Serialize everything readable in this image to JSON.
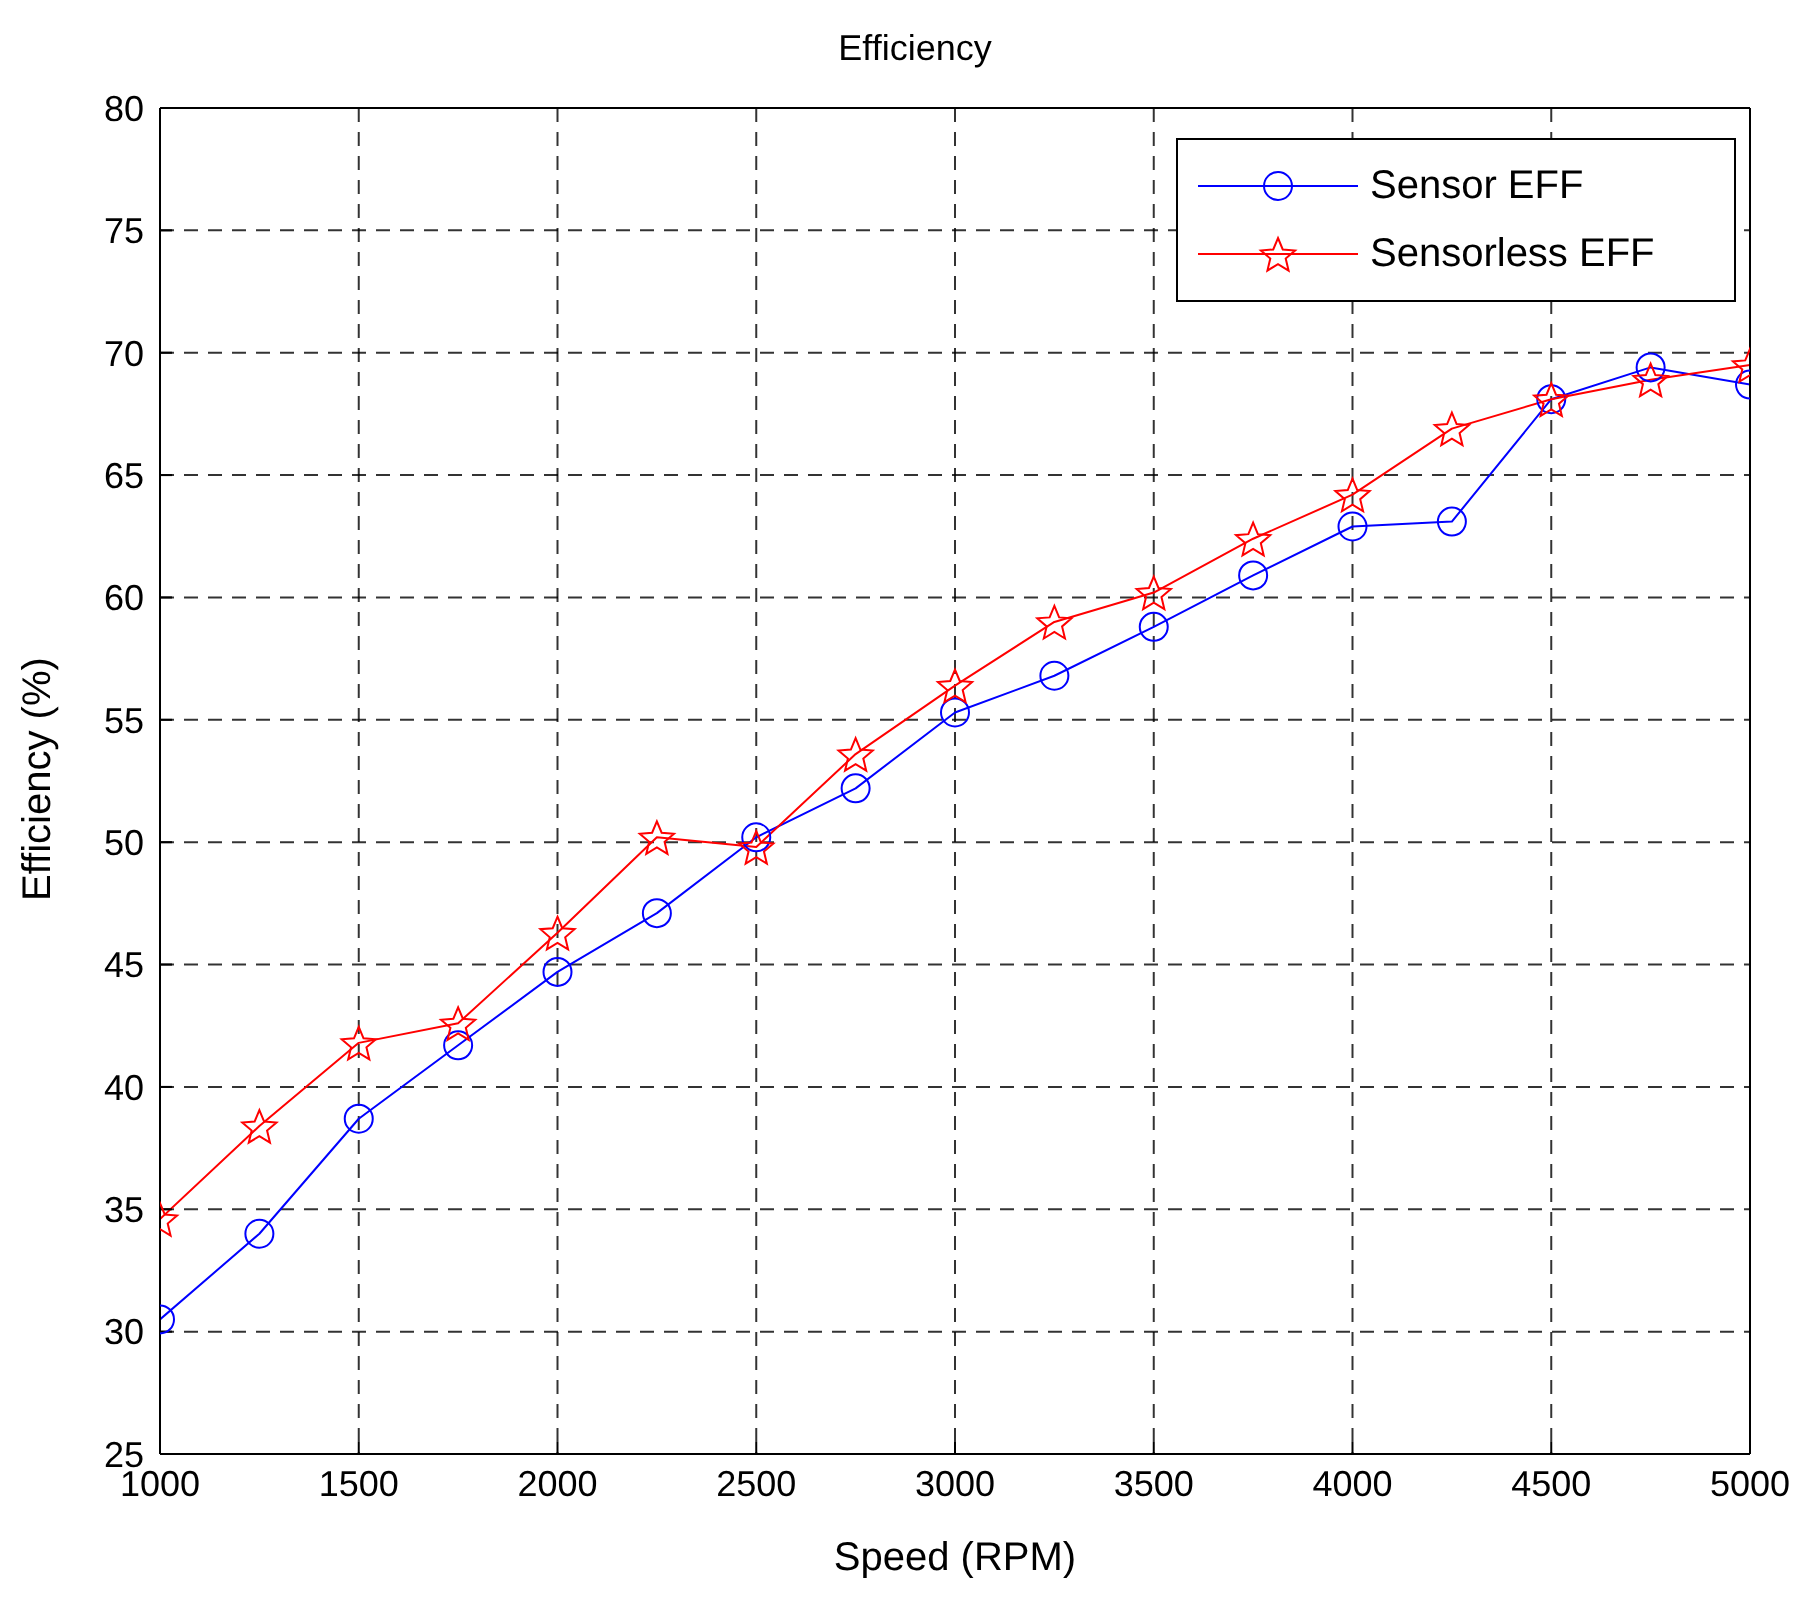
{
  "chart_data": {
    "type": "line",
    "title": "Efficiency",
    "xlabel": "Speed (RPM)",
    "ylabel": "Efficiency (%)",
    "x": [
      1000,
      1250,
      1500,
      1750,
      2000,
      2250,
      2500,
      2750,
      3000,
      3250,
      3500,
      3750,
      4000,
      4250,
      4500,
      4750,
      5000
    ],
    "series": [
      {
        "name": "Sensor EFF",
        "color": "#0000ff",
        "marker": "circle",
        "values": [
          30.5,
          34.0,
          38.7,
          41.7,
          44.7,
          47.1,
          50.2,
          52.2,
          55.3,
          56.8,
          58.8,
          60.9,
          62.9,
          63.1,
          68.1,
          69.4,
          68.7
        ]
      },
      {
        "name": "Sensorless EFF",
        "color": "#ff0000",
        "marker": "star",
        "values": [
          34.6,
          38.4,
          41.8,
          42.6,
          46.3,
          50.2,
          49.8,
          53.6,
          56.4,
          59.0,
          60.2,
          62.4,
          64.2,
          66.9,
          68.1,
          68.9,
          69.5
        ]
      }
    ],
    "xlim": [
      1000,
      5000
    ],
    "xticks": [
      1000,
      1500,
      2000,
      2500,
      3000,
      3500,
      4000,
      4500,
      5000
    ],
    "ylim": [
      25,
      80
    ],
    "yticks": [
      25,
      30,
      35,
      40,
      45,
      50,
      55,
      60,
      65,
      70,
      75,
      80
    ],
    "grid": true,
    "legend": "top right",
    "line_style": "solid"
  }
}
